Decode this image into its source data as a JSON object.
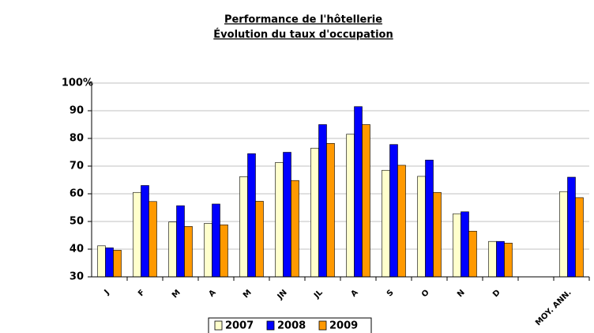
{
  "chart_data": {
    "type": "bar",
    "title": "Performance de l'hôtellerie",
    "subtitle": "Évolution du taux d'occupation",
    "categories": [
      "J",
      "F",
      "M",
      "A",
      "M",
      "JN",
      "JL",
      "A",
      "S",
      "O",
      "N",
      "D",
      null,
      "MOY. ANN."
    ],
    "series": [
      {
        "name": "2007",
        "color": "#ffffcc",
        "values": [
          41.2,
          60.5,
          49.8,
          49.3,
          66.2,
          71.3,
          76.5,
          81.5,
          68.5,
          66.3,
          52.8,
          42.8,
          null,
          60.8
        ]
      },
      {
        "name": "2008",
        "color": "#0000ff",
        "values": [
          40.5,
          63,
          55.7,
          56.3,
          74.5,
          75,
          85,
          91.5,
          77.8,
          72.2,
          53.5,
          42.8,
          null,
          66
        ]
      },
      {
        "name": "2009",
        "color": "#ff9900",
        "values": [
          39.6,
          57.2,
          48.2,
          48.8,
          57.3,
          64.8,
          78.2,
          85,
          70.3,
          60.5,
          46.5,
          42.2,
          null,
          58.6
        ]
      }
    ],
    "ylim": [
      30,
      100
    ],
    "yticks": [
      30,
      40,
      50,
      60,
      70,
      80,
      90,
      {
        "value": 100,
        "label": "100%"
      }
    ],
    "grid": true,
    "legend": "bottom"
  }
}
